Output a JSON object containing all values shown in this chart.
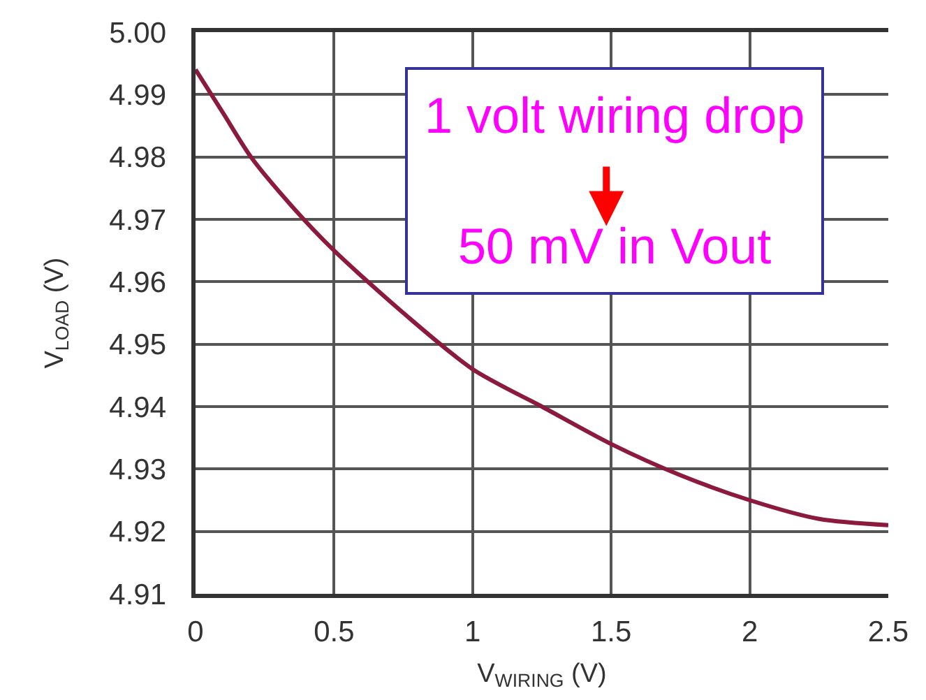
{
  "chart_data": {
    "type": "line",
    "x": [
      0,
      0.1,
      0.2,
      0.35,
      0.5,
      0.75,
      1,
      1.25,
      1.5,
      1.75,
      2,
      2.25,
      2.5
    ],
    "series": [
      {
        "color": "#8b1a3c",
        "values": [
          4.994,
          4.987,
          4.98,
          4.972,
          4.965,
          4.955,
          4.946,
          4.94,
          4.934,
          4.929,
          4.925,
          4.922,
          4.921
        ]
      }
    ],
    "xlabel": "V$_{WIRING}$ (V)",
    "ylabel": "V$_{LOAD}$ (V)",
    "xlim": [
      0,
      2.5
    ],
    "ylim": [
      4.91,
      5.0
    ],
    "xticks": [
      0,
      0.5,
      1,
      1.5,
      2,
      2.5
    ],
    "yticks": [
      4.91,
      4.92,
      4.93,
      4.94,
      4.95,
      4.96,
      4.97,
      4.98,
      4.99,
      {
        "value": 5.0,
        "label": "5.00"
      }
    ],
    "annotations": [
      "1 volt wiring drop",
      "50 mV in Vout"
    ],
    "grid": true,
    "line_style": "solid"
  }
}
